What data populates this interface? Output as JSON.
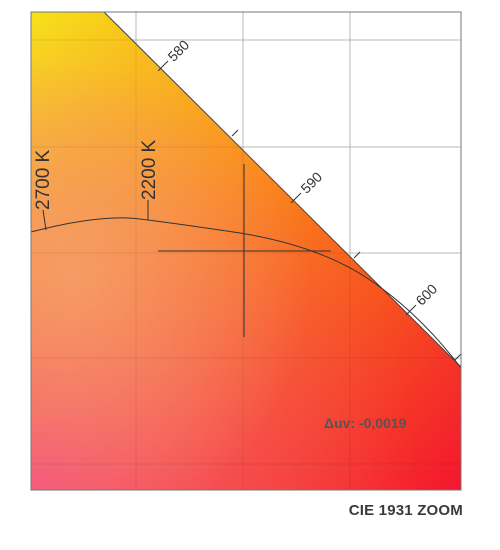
{
  "caption": "CIE 1931 ZOOM",
  "colors": {
    "yellow": "#f7e11a",
    "orange": "#fb8d10",
    "red": "#f3162f",
    "pink": "#f34a8a",
    "peach": "#f5a76e",
    "grid": "#c8c8c8",
    "ink": "#333333",
    "frame": "#555555"
  },
  "chart_data": {
    "type": "scatter",
    "title": "",
    "grid": true,
    "wavelength_ticks": [
      {
        "nm": 580,
        "label": "580"
      },
      {
        "nm": 590,
        "label": "590"
      },
      {
        "nm": 600,
        "label": "600"
      }
    ],
    "cct_ticks": [
      {
        "kelvin": 2700,
        "label": "2700 K"
      },
      {
        "kelvin": 2200,
        "label": "2200 K"
      }
    ],
    "delta_uv": {
      "label": "Δuv: -0,0019",
      "value": -0.0019
    },
    "markers": [
      {
        "type": "crosshair",
        "label": ""
      }
    ]
  }
}
